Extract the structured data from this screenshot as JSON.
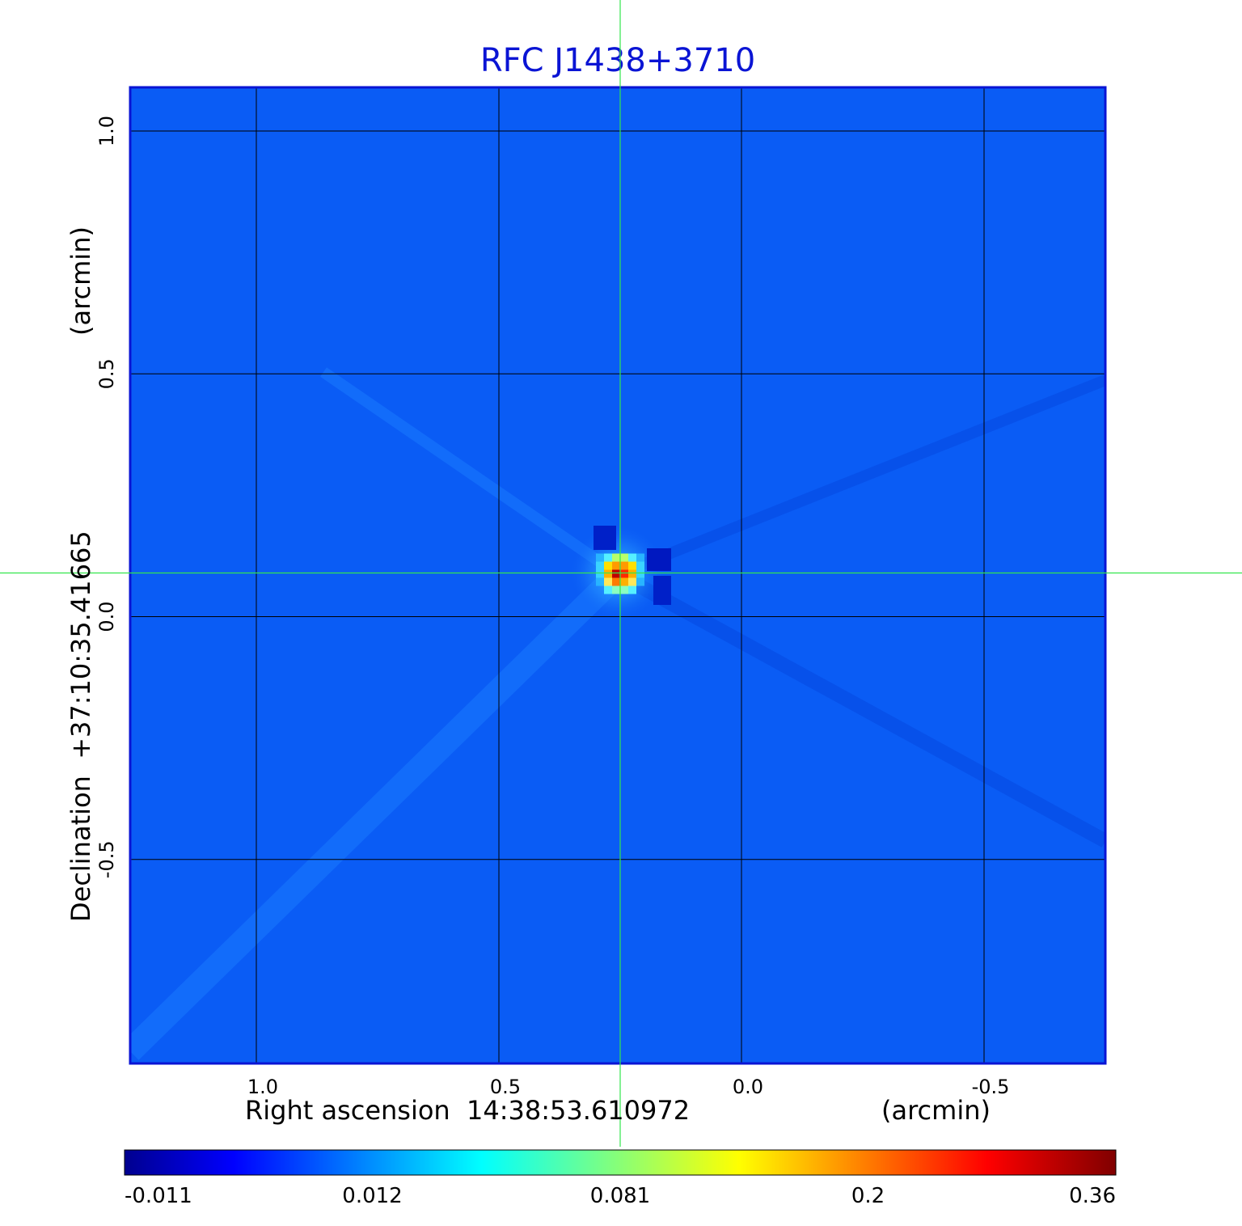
{
  "chart_data": {
    "type": "heatmap",
    "title": "RFC J1438+3710",
    "xlabel_left": "Right ascension  14:38:53.610972",
    "xlabel_right": "(arcmin)",
    "ylabel_left": "Declination  +37:10:35.41665",
    "ylabel_right": "(arcmin)",
    "x_ticks": [
      "1.0",
      "0.5",
      "0.0",
      "-0.5"
    ],
    "x_tick_values": [
      1.0,
      0.5,
      0.0,
      -0.5
    ],
    "y_ticks": [
      "1.0",
      "0.5",
      "0.0",
      "-0.5"
    ],
    "y_tick_values": [
      1.0,
      0.5,
      0.0,
      -0.5
    ],
    "xlim": [
      1.26,
      -0.75
    ],
    "ylim": [
      -0.92,
      1.09
    ],
    "grid": true,
    "source_peak": {
      "x": 0.25,
      "y": 0.09,
      "value": 0.36
    },
    "crosshair": {
      "x": 0.25,
      "y": 0.09
    },
    "colorbar": {
      "tick_labels": [
        "-0.011",
        "0.012",
        "0.081",
        "0.2",
        "0.36"
      ],
      "min": -0.011,
      "max": 0.36,
      "colormap": "jet"
    },
    "colors": {
      "title": "#0a14d4",
      "frame": "#0a14d4",
      "background_field": "#0a5cf5",
      "grid": "#000000",
      "crosshair": "#33e64d"
    }
  }
}
